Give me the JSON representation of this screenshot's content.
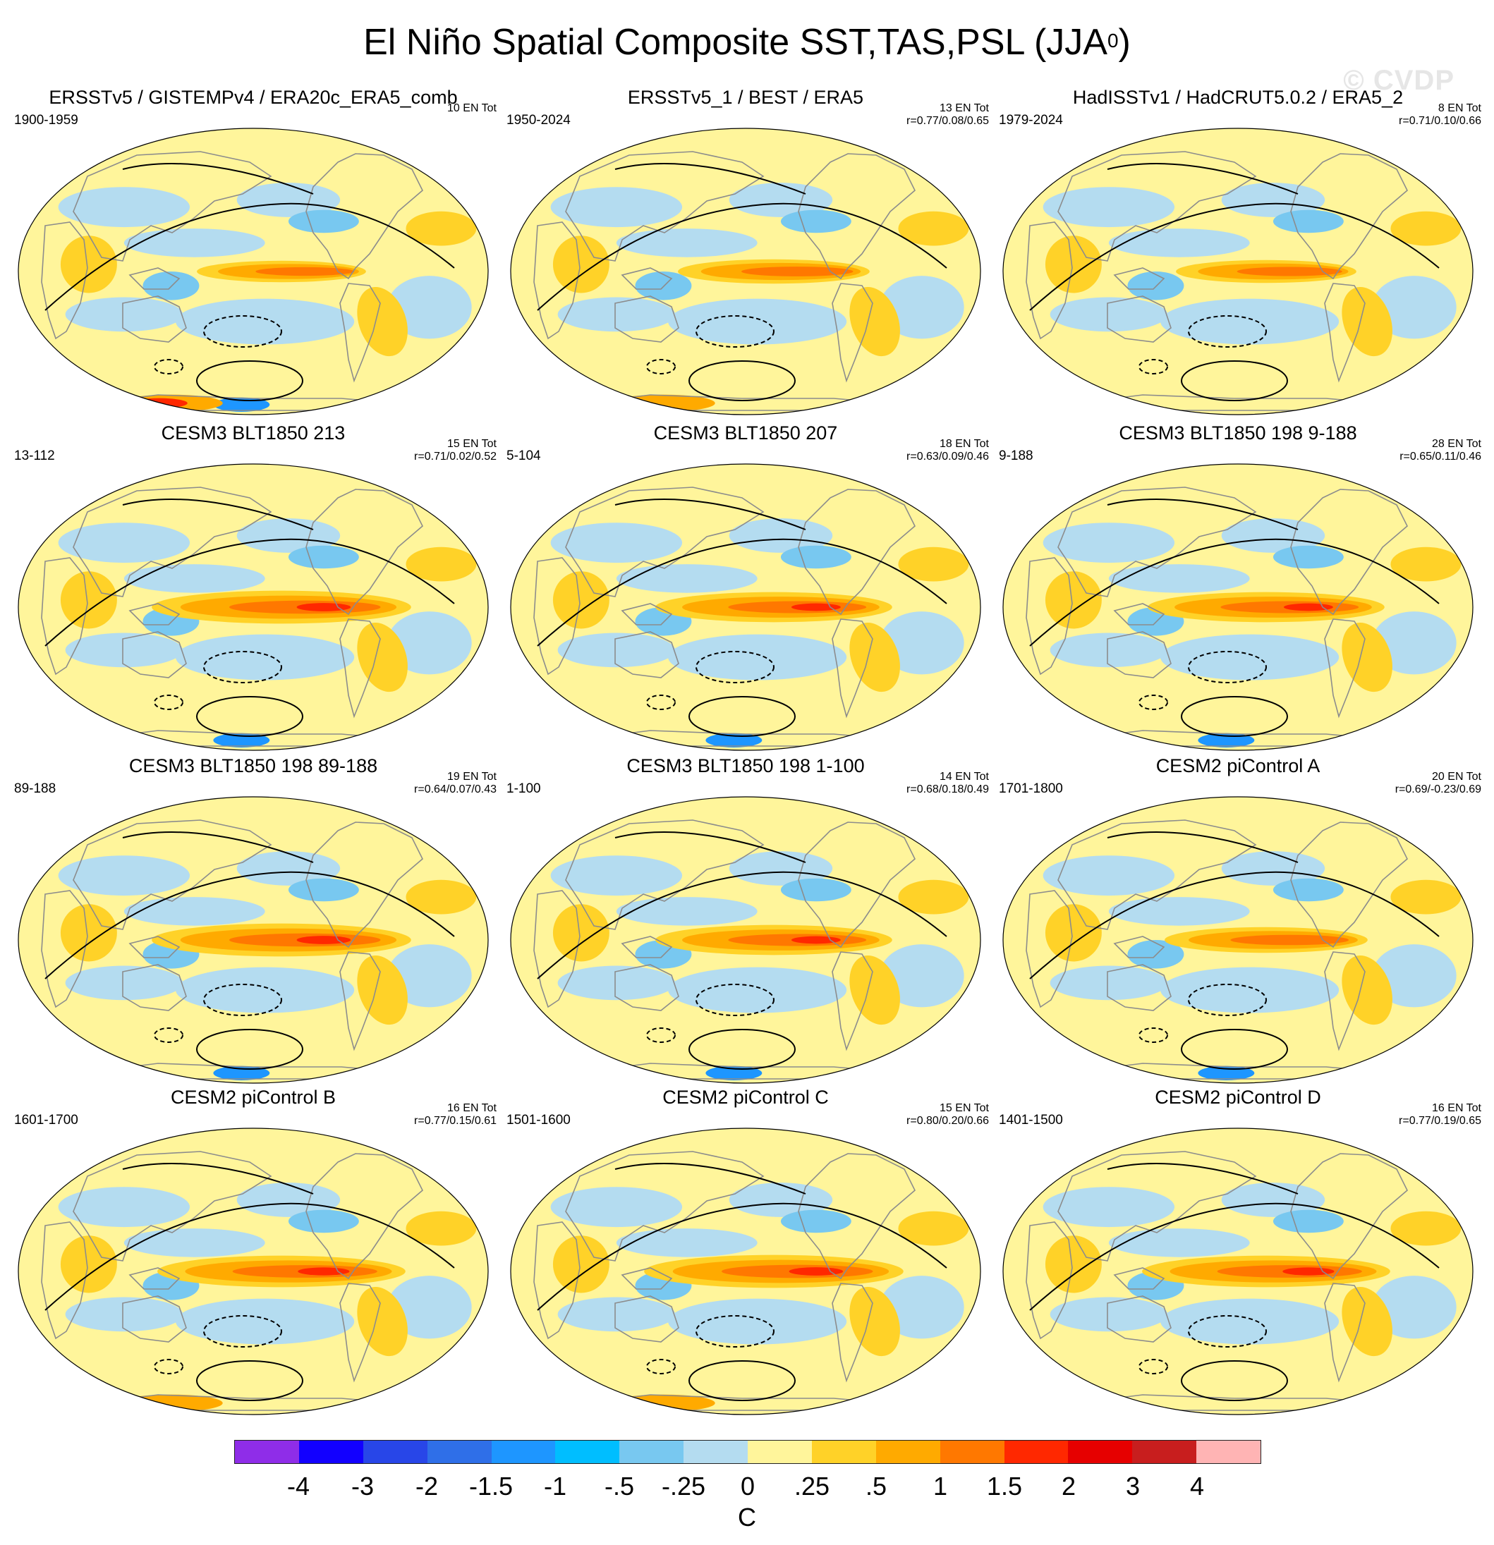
{
  "title": {
    "main": "El Niño Spatial Composite SST,TAS,PSL (JJA",
    "sup": "0",
    "close": ")"
  },
  "watermark": "© CVDP",
  "colors": {
    "land_outline": "#8c8c8c",
    "contour": "#000000",
    "levels": [
      "#8f2de8",
      "#1200ff",
      "#2846e8",
      "#2f6fe8",
      "#1e96ff",
      "#00beff",
      "#78c8f0",
      "#b4dcf0",
      "#fff59b",
      "#ffd228",
      "#ffaa00",
      "#ff7800",
      "#ff2800",
      "#e60000",
      "#c81e1e",
      "#ffb4b4"
    ]
  },
  "panels": [
    {
      "title": "ERSSTv5 / GISTEMPv4 / ERA20c_ERA5_comb",
      "period": "1900-1959",
      "events": "10 EN Tot",
      "corr": "",
      "warm": 0.75,
      "south": "warmcold"
    },
    {
      "title": "ERSSTv5_1 / BEST / ERA5",
      "period": "1950-2024",
      "events": "13 EN Tot",
      "corr": "r=0.77/0.08/0.65",
      "warm": 0.85,
      "south": "warm"
    },
    {
      "title": "HadISSTv1 / HadCRUT5.0.2 / ERA5_2",
      "period": "1979-2024",
      "events": "8 EN Tot",
      "corr": "r=0.71/0.10/0.66",
      "warm": 0.8,
      "south": "none"
    },
    {
      "title": "CESM3 BLT1850 213",
      "period": "13-112",
      "events": "15 EN Tot",
      "corr": "r=0.71/0.02/0.52",
      "warm": 1.15,
      "south": "cold"
    },
    {
      "title": "CESM3 BLT1850 207",
      "period": "5-104",
      "events": "18 EN Tot",
      "corr": "r=0.63/0.09/0.46",
      "warm": 1.05,
      "south": "cold"
    },
    {
      "title": "CESM3 BLT1850 198 9-188",
      "period": "9-188",
      "events": "28 EN Tot",
      "corr": "r=0.65/0.11/0.46",
      "warm": 1.05,
      "south": "cold"
    },
    {
      "title": "CESM3 BLT1850 198 89-188",
      "period": "89-188",
      "events": "19 EN Tot",
      "corr": "r=0.64/0.07/0.43",
      "warm": 1.15,
      "south": "cold"
    },
    {
      "title": "CESM3 BLT1850 198 1-100",
      "period": "1-100",
      "events": "14 EN Tot",
      "corr": "r=0.68/0.18/0.49",
      "warm": 1.05,
      "south": "cold"
    },
    {
      "title": "CESM2 piControl A",
      "period": "1701-1800",
      "events": "20 EN Tot",
      "corr": "r=0.69/-0.23/0.69",
      "warm": 0.9,
      "south": "cold"
    },
    {
      "title": "CESM2 piControl B",
      "period": "1601-1700",
      "events": "16 EN Tot",
      "corr": "r=0.77/0.15/0.61",
      "warm": 1.1,
      "south": "warm"
    },
    {
      "title": "CESM2 piControl C",
      "period": "1501-1600",
      "events": "15 EN Tot",
      "corr": "r=0.80/0.20/0.66",
      "warm": 1.15,
      "south": "warm"
    },
    {
      "title": "CESM2 piControl D",
      "period": "1401-1500",
      "events": "16 EN Tot",
      "corr": "r=0.77/0.19/0.65",
      "warm": 1.1,
      "south": "none"
    }
  ],
  "colorbar": {
    "ticks": [
      "-4",
      "-3",
      "-2",
      "-1.5",
      "-1",
      "-.5",
      "-.25",
      "0",
      ".25",
      ".5",
      "1",
      "1.5",
      "2",
      "3",
      "4"
    ],
    "unit": "C"
  }
}
